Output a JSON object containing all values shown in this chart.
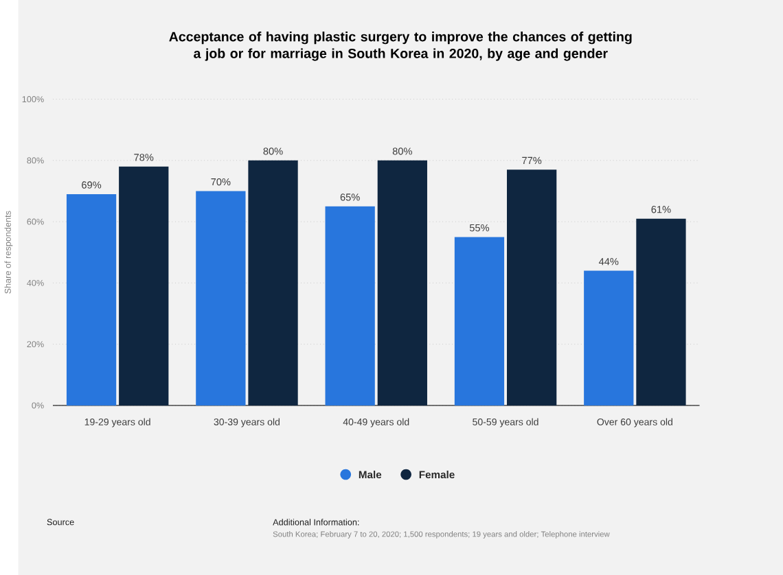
{
  "chart_data": {
    "type": "bar",
    "title": "Acceptance of having plastic surgery to improve the chances of getting a job or for marriage in South Korea in 2020, by age and gender",
    "ylabel": "Share of respondents",
    "categories": [
      "19-29 years old",
      "30-39 years old",
      "40-49 years old",
      "50-59 years old",
      "Over 60 years old"
    ],
    "series": [
      {
        "name": "Male",
        "color": "#2876dd",
        "values": [
          69,
          70,
          65,
          55,
          44
        ],
        "value_labels": [
          "69%",
          "70%",
          "65%",
          "55%",
          "44%"
        ]
      },
      {
        "name": "Female",
        "color": "#0f2640",
        "values": [
          78,
          80,
          80,
          77,
          61
        ],
        "value_labels": [
          "78%",
          "80%",
          "80%",
          "77%",
          "61%"
        ]
      }
    ],
    "ylim": [
      0,
      100
    ],
    "yticks": [
      {
        "value": 0,
        "label": "0%"
      },
      {
        "value": 20,
        "label": "20%"
      },
      {
        "value": 40,
        "label": "40%"
      },
      {
        "value": 60,
        "label": "60%"
      },
      {
        "value": 80,
        "label": "80%"
      },
      {
        "value": 100,
        "label": "100%"
      }
    ],
    "grid": "y",
    "legend": "bottom",
    "annotations": [
      "Source",
      "Additional Information:",
      "South Korea; February 7 to 20, 2020; 1,500 respondents; 19 years and older; Telephone interview"
    ]
  }
}
